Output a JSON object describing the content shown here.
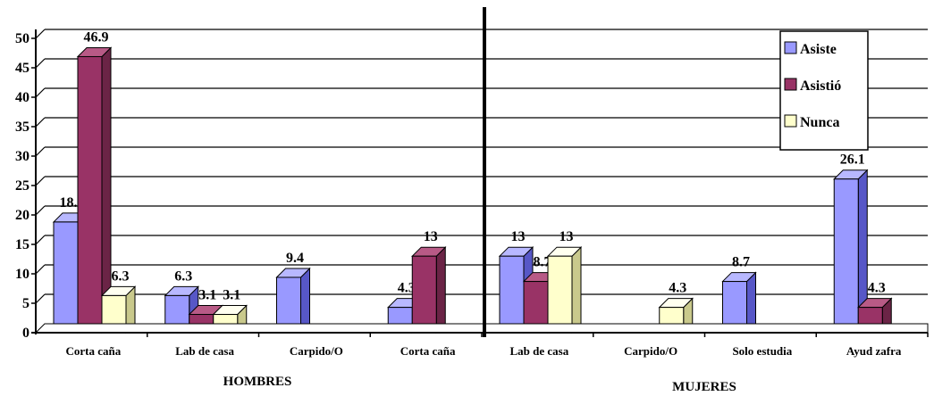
{
  "chart_data": {
    "type": "bar",
    "categories": [
      "Corta caña",
      "Lab de casa",
      "Carpido/O",
      "Corta caña",
      "Lab de casa",
      "Carpido/O",
      "Solo estudia",
      "Ayud zafra"
    ],
    "groups": [
      "HOMBRES",
      "MUJERES"
    ],
    "series": [
      {
        "name": "Asiste",
        "values": [
          18.8,
          6.3,
          9.4,
          4.3,
          13,
          0,
          8.7,
          26.1
        ],
        "labels": [
          "18.8",
          "6.3",
          "9.4",
          "4.3",
          "13",
          "",
          "8.7",
          "26.1"
        ]
      },
      {
        "name": "Asistió",
        "values": [
          46.9,
          3.1,
          0,
          13,
          8.7,
          0,
          0,
          4.3
        ],
        "labels": [
          "46.9",
          "3.1",
          "",
          "13",
          "8.7",
          "",
          "",
          "4.3"
        ]
      },
      {
        "name": "Nunca",
        "values": [
          6.3,
          3.1,
          0,
          0,
          13,
          4.3,
          0,
          0
        ],
        "labels": [
          "6.3",
          "3.1",
          "",
          "",
          "13",
          "4.3",
          "",
          ""
        ]
      }
    ],
    "ylim": [
      0,
      50
    ],
    "yticks": [
      "0",
      "5",
      "10",
      "15",
      "20",
      "25",
      "30",
      "35",
      "40",
      "45",
      "50"
    ],
    "grid": true,
    "legend_position": "top-right",
    "colors": {
      "Asiste": "#9999ff",
      "Asistió": "#993366",
      "Nunca": "#ffffcc"
    },
    "side_colors": {
      "Asiste": "#5757c7",
      "Asistió": "#6b2446",
      "Nunca": "#c9c98c"
    },
    "top_colors": {
      "Asiste": "#b8b8ff",
      "Asistió": "#b85a86",
      "Nunca": "#fffff0"
    }
  }
}
